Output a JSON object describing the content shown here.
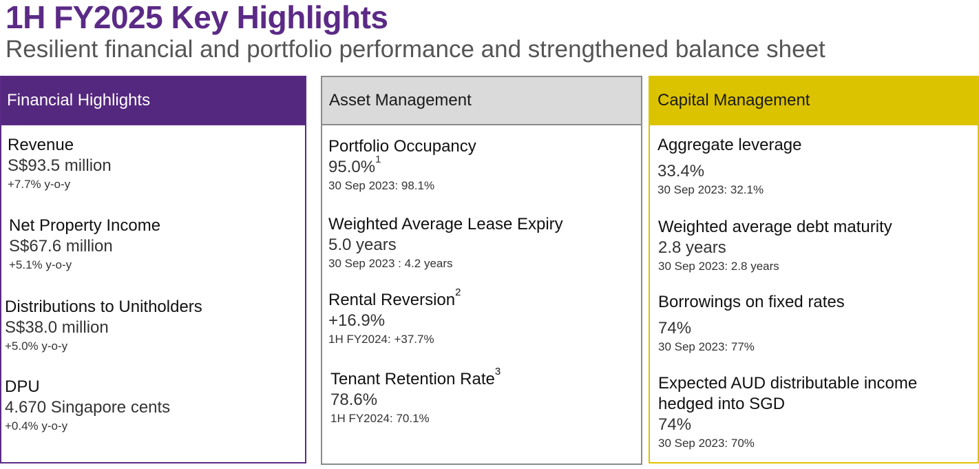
{
  "header": {
    "title": "1H FY2025 Key Highlights",
    "subtitle": "Resilient financial and portfolio performance and strengthened balance sheet"
  },
  "financial": {
    "heading": "Financial Highlights",
    "items": [
      {
        "label": "Revenue",
        "value": "S$93.5 million",
        "note": "+7.7% y-o-y"
      },
      {
        "label": "Net Property Income",
        "value": "S$67.6 million",
        "note": "+5.1% y-o-y"
      },
      {
        "label": "Distributions to Unitholders",
        "value": "S$38.0 million",
        "note": "+5.0% y-o-y"
      },
      {
        "label": "DPU",
        "value": "4.670 Singapore cents",
        "note": "+0.4% y-o-y"
      }
    ]
  },
  "asset": {
    "heading": "Asset Management",
    "items": [
      {
        "label": "Portfolio Occupancy",
        "value": "95.0%",
        "value_sup": "1",
        "note": "30 Sep 2023: 98.1%"
      },
      {
        "label": "Weighted Average Lease Expiry",
        "value": "5.0 years",
        "note": "30 Sep 2023 : 4.2 years"
      },
      {
        "label": "Rental Reversion",
        "label_sup": "2",
        "value": "+16.9%",
        "note": "1H FY2024: +37.7%"
      },
      {
        "label": "Tenant Retention Rate",
        "label_sup": "3",
        "value": "78.6%",
        "note": "1H FY2024: 70.1%"
      }
    ]
  },
  "capital": {
    "heading": "Capital Management",
    "items": [
      {
        "label": "Aggregate leverage",
        "value": "33.4%",
        "note": "30 Sep 2023: 32.1%"
      },
      {
        "label": "Weighted average debt maturity",
        "value": "2.8 years",
        "note": "30 Sep 2023: 2.8 years"
      },
      {
        "label": "Borrowings on fixed rates",
        "value": "74%",
        "note": "30 Sep 2023: 77%"
      },
      {
        "label": "Expected AUD distributable income hedged into SGD",
        "value": "74%",
        "note": "30 Sep 2023: 70%"
      }
    ]
  },
  "colors": {
    "brand_purple": "#55287f",
    "title_purple": "#5b2a86",
    "asset_grey": "#dadada",
    "capital_yellow": "#dcc300"
  }
}
